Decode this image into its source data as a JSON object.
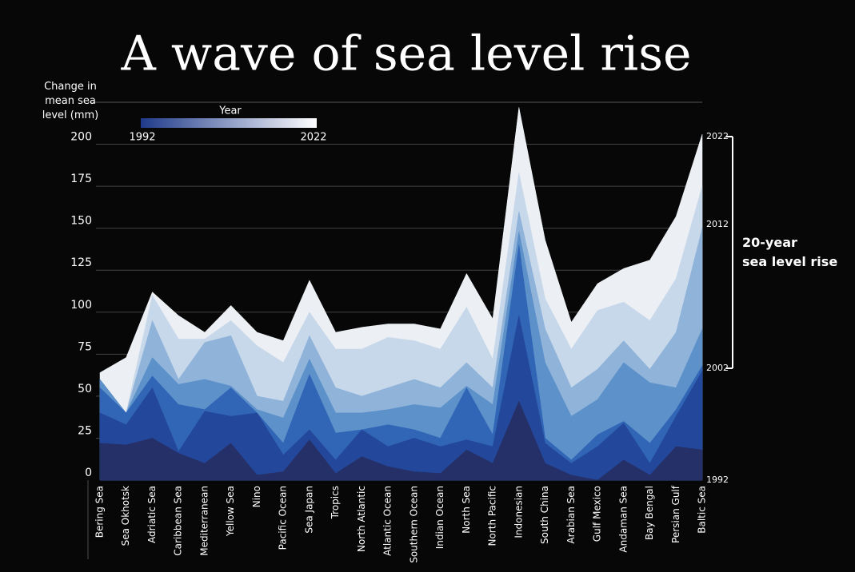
{
  "chart_data": {
    "type": "area",
    "title": "A wave of sea level rise",
    "y_label": [
      "Change in",
      "mean sea",
      "level (mm)"
    ],
    "legend": {
      "title": "Year",
      "range": [
        1992,
        2022
      ],
      "colors": [
        "#1f3a8a",
        "#ffffff"
      ]
    },
    "bracket_labels": [
      2022,
      2012,
      2002,
      1992
    ],
    "side_note": [
      "20-year",
      "sea level rise"
    ],
    "categories": [
      "Bering Sea",
      "Sea Okhotsk",
      "Adriatic Sea",
      "Caribbean Sea",
      "Mediterranean",
      "Yellow Sea",
      "Nino",
      "Pacific Ocean",
      "Sea Japan",
      "Tropics",
      "North Atlantic",
      "Atlantic Ocean",
      "Southern Ocean",
      "Indian Ocean",
      "North Sea",
      "North Pacific",
      "Indonesian",
      "South China",
      "Arabian Sea",
      "Gulf Mexico",
      "Andaman Sea",
      "Bay Bengal",
      "Persian Gulf",
      "Baltic Sea"
    ],
    "series": [
      {
        "color": "#f4f7fb",
        "values": [
          64,
          73,
          112,
          98,
          88,
          104,
          88,
          83,
          119,
          88,
          91,
          93,
          93,
          90,
          123,
          96,
          222,
          143,
          94,
          117,
          126,
          131,
          157,
          206
        ]
      },
      {
        "color": "#c6d7ea",
        "values": [
          58,
          40,
          110,
          84,
          84,
          95,
          80,
          70,
          100,
          78,
          78,
          85,
          83,
          78,
          103,
          72,
          183,
          108,
          78,
          101,
          106,
          95,
          120,
          175
        ]
      },
      {
        "color": "#8db2d9",
        "values": [
          60,
          40,
          95,
          60,
          82,
          86,
          50,
          47,
          86,
          55,
          50,
          55,
          60,
          55,
          70,
          55,
          160,
          90,
          55,
          66,
          83,
          66,
          88,
          150
        ]
      },
      {
        "color": "#5a8fc9",
        "values": [
          60,
          40,
          73,
          57,
          60,
          56,
          42,
          37,
          72,
          40,
          40,
          42,
          45,
          43,
          56,
          45,
          148,
          70,
          38,
          48,
          70,
          58,
          55,
          90
        ]
      },
      {
        "color": "#2f63b5",
        "values": [
          55,
          40,
          62,
          45,
          42,
          55,
          40,
          22,
          63,
          28,
          30,
          33,
          30,
          25,
          55,
          27,
          140,
          25,
          12,
          27,
          35,
          22,
          42,
          68
        ]
      },
      {
        "color": "#23479a",
        "values": [
          40,
          33,
          55,
          17,
          41,
          38,
          40,
          15,
          30,
          12,
          30,
          20,
          25,
          20,
          24,
          20,
          98,
          22,
          10,
          20,
          34,
          10,
          38,
          65
        ]
      },
      {
        "color": "#262f66",
        "values": [
          22,
          21,
          25,
          16,
          10,
          22,
          3,
          5,
          24,
          4,
          14,
          8,
          5,
          4,
          18,
          10,
          47,
          10,
          3,
          0,
          12,
          3,
          20,
          18
        ]
      }
    ],
    "ylim": [
      0,
      225
    ],
    "yticks": [
      0,
      25,
      50,
      75,
      100,
      125,
      150,
      175,
      200
    ],
    "grid": true
  }
}
